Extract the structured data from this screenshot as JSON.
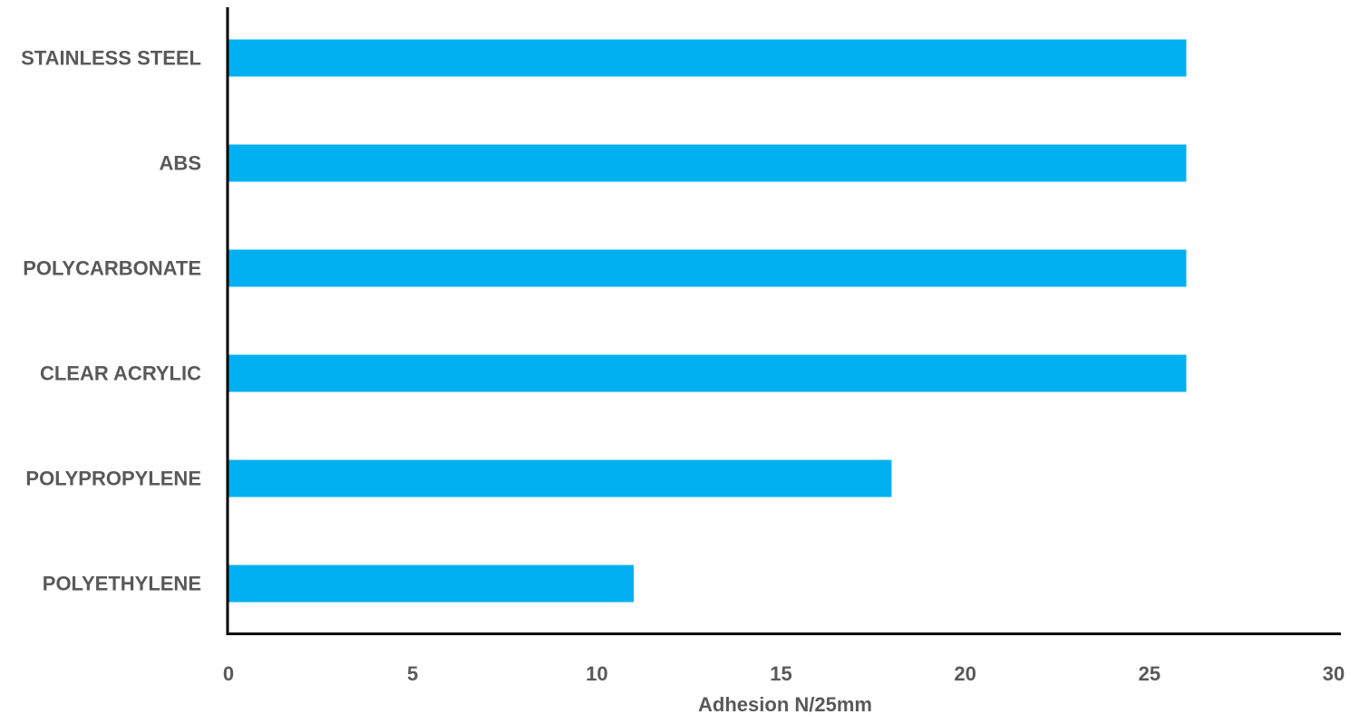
{
  "chart_data": {
    "type": "bar",
    "orientation": "horizontal",
    "categories": [
      "STAINLESS STEEL",
      "ABS",
      "POLYCARBONATE",
      "CLEAR ACRYLIC",
      "POLYPROPYLENE",
      "POLYETHYLENE"
    ],
    "values": [
      26,
      26,
      26,
      26,
      18,
      11
    ],
    "xlabel": "Adhesion N/25mm",
    "ylabel": "",
    "title": "",
    "xlim": [
      0,
      30
    ],
    "xticks": [
      "0",
      "5",
      "10",
      "15",
      "20",
      "25",
      "30"
    ],
    "grid": false,
    "legend": "none",
    "colors": {
      "bar": "#00B0F0",
      "axis": "#000000",
      "text": "#595959"
    }
  }
}
